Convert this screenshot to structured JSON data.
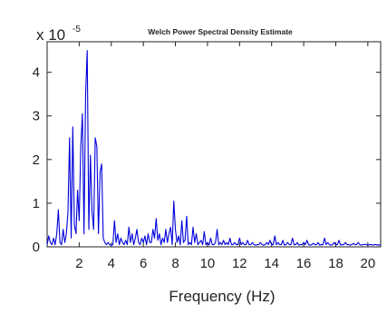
{
  "chart_data": {
    "type": "line",
    "title": "Welch Power Spectral Density Estimate",
    "xlabel": "Frequency (Hz)",
    "ylabel": "",
    "y_scale_base": "x 10",
    "y_scale_exponent": "-5",
    "xlim": [
      0,
      20.8
    ],
    "ylim": [
      0,
      4.7
    ],
    "xticks": [
      2,
      4,
      6,
      8,
      10,
      12,
      14,
      16,
      18,
      20
    ],
    "yticks": [
      0,
      1,
      2,
      3,
      4
    ],
    "line_color": "#0000dd",
    "grid": false,
    "series": [
      {
        "x": [
          0.0,
          0.1,
          0.2,
          0.3,
          0.4,
          0.5,
          0.6,
          0.7,
          0.8,
          0.9,
          1.0,
          1.1,
          1.2,
          1.3,
          1.4,
          1.5,
          1.6,
          1.7,
          1.8,
          1.9,
          2.0,
          2.1,
          2.2,
          2.3,
          2.4,
          2.5,
          2.6,
          2.7,
          2.8,
          2.9,
          3.0,
          3.1,
          3.2,
          3.3,
          3.4,
          3.5,
          3.6,
          3.7,
          3.8,
          3.9,
          4.0,
          4.1,
          4.2,
          4.3,
          4.4,
          4.5,
          4.6,
          4.7,
          4.8,
          4.9,
          5.0,
          5.1,
          5.2,
          5.3,
          5.4,
          5.5,
          5.6,
          5.7,
          5.8,
          5.9,
          6.0,
          6.1,
          6.2,
          6.3,
          6.4,
          6.5,
          6.6,
          6.7,
          6.8,
          6.9,
          7.0,
          7.1,
          7.2,
          7.3,
          7.4,
          7.5,
          7.6,
          7.7,
          7.8,
          7.9,
          8.0,
          8.1,
          8.2,
          8.3,
          8.4,
          8.5,
          8.6,
          8.7,
          8.8,
          8.9,
          9.0,
          9.1,
          9.2,
          9.3,
          9.4,
          9.5,
          9.6,
          9.7,
          9.8,
          9.9,
          10.0,
          10.1,
          10.2,
          10.3,
          10.4,
          10.5,
          10.6,
          10.7,
          10.8,
          10.9,
          11.0,
          11.1,
          11.2,
          11.3,
          11.4,
          11.5,
          11.6,
          11.7,
          11.8,
          11.9,
          12.0,
          12.1,
          12.2,
          12.3,
          12.4,
          12.5,
          12.6,
          12.7,
          12.8,
          12.9,
          13.0,
          13.1,
          13.2,
          13.3,
          13.4,
          13.5,
          13.6,
          13.7,
          13.8,
          13.9,
          14.0,
          14.1,
          14.2,
          14.3,
          14.4,
          14.5,
          14.6,
          14.7,
          14.8,
          14.9,
          15.0,
          15.1,
          15.2,
          15.3,
          15.4,
          15.5,
          15.6,
          15.7,
          15.8,
          15.9,
          16.0,
          16.1,
          16.2,
          16.3,
          16.4,
          16.5,
          16.6,
          16.7,
          16.8,
          16.9,
          17.0,
          17.1,
          17.2,
          17.3,
          17.4,
          17.5,
          17.6,
          17.7,
          17.8,
          17.9,
          18.0,
          18.1,
          18.2,
          18.3,
          18.4,
          18.5,
          18.6,
          18.7,
          18.8,
          18.9,
          19.0,
          19.1,
          19.2,
          19.3,
          19.4,
          19.5,
          19.6,
          19.7,
          19.8,
          19.9,
          20.0,
          20.1,
          20.2,
          20.3,
          20.4,
          20.5,
          20.6,
          20.7,
          20.8
        ],
        "values": [
          0.05,
          0.25,
          0.1,
          0.05,
          0.2,
          0.05,
          0.3,
          0.85,
          0.1,
          0.05,
          0.4,
          0.1,
          0.3,
          0.8,
          2.5,
          0.2,
          2.75,
          0.5,
          0.3,
          1.3,
          0.6,
          2.3,
          3.05,
          0.3,
          3.5,
          4.5,
          0.4,
          2.1,
          0.8,
          0.4,
          2.5,
          2.3,
          0.3,
          1.7,
          1.9,
          0.2,
          0.1,
          0.05,
          0.1,
          0.05,
          0.04,
          0.05,
          0.6,
          0.1,
          0.3,
          0.05,
          0.2,
          0.1,
          0.05,
          0.15,
          0.05,
          0.45,
          0.1,
          0.3,
          0.05,
          0.2,
          0.4,
          0.1,
          0.05,
          0.2,
          0.1,
          0.25,
          0.05,
          0.3,
          0.1,
          0.1,
          0.4,
          0.2,
          0.65,
          0.15,
          0.3,
          0.05,
          0.2,
          0.1,
          0.4,
          0.1,
          0.3,
          0.45,
          0.05,
          1.05,
          0.4,
          0.1,
          0.25,
          0.05,
          0.6,
          0.1,
          0.15,
          0.7,
          0.05,
          0.1,
          0.05,
          0.45,
          0.1,
          0.3,
          0.05,
          0.1,
          0.15,
          0.05,
          0.35,
          0.05,
          0.1,
          0.04,
          0.2,
          0.05,
          0.05,
          0.1,
          0.4,
          0.05,
          0.1,
          0.05,
          0.15,
          0.05,
          0.1,
          0.05,
          0.2,
          0.05,
          0.05,
          0.1,
          0.05,
          0.05,
          0.2,
          0.05,
          0.1,
          0.05,
          0.05,
          0.15,
          0.05,
          0.05,
          0.1,
          0.05,
          0.04,
          0.05,
          0.05,
          0.1,
          0.05,
          0.04,
          0.05,
          0.1,
          0.05,
          0.15,
          0.05,
          0.05,
          0.25,
          0.05,
          0.1,
          0.05,
          0.05,
          0.15,
          0.04,
          0.05,
          0.1,
          0.05,
          0.05,
          0.2,
          0.05,
          0.05,
          0.1,
          0.04,
          0.05,
          0.05,
          0.1,
          0.05,
          0.15,
          0.05,
          0.04,
          0.05,
          0.08,
          0.05,
          0.05,
          0.1,
          0.04,
          0.05,
          0.05,
          0.2,
          0.05,
          0.1,
          0.05,
          0.04,
          0.05,
          0.1,
          0.05,
          0.05,
          0.15,
          0.04,
          0.05,
          0.05,
          0.1,
          0.05,
          0.05,
          0.04,
          0.05,
          0.08,
          0.05,
          0.05,
          0.1,
          0.05,
          0.04,
          0.05,
          0.06,
          0.05,
          0.04,
          0.05,
          0.05,
          0.04,
          0.05,
          0.05,
          0.04,
          0.05,
          0.03
        ]
      }
    ]
  }
}
